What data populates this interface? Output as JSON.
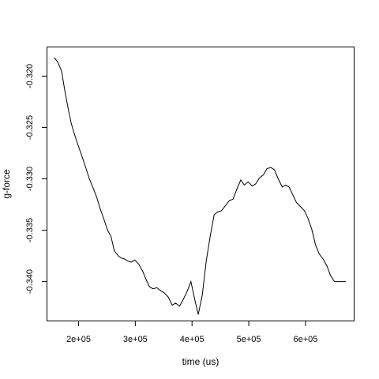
{
  "chart_data": {
    "type": "line",
    "title": "",
    "xlabel": "time (us)",
    "ylabel": "g-force",
    "xlim": [
      145000,
      685000
    ],
    "ylim": [
      -0.3438,
      -0.3172
    ],
    "x_ticks": [
      200000,
      300000,
      400000,
      500000,
      600000
    ],
    "x_tick_labels": [
      "2e+05",
      "3e+05",
      "4e+05",
      "5e+05",
      "6e+05"
    ],
    "y_ticks": [
      -0.32,
      -0.325,
      -0.33,
      -0.335,
      -0.34
    ],
    "y_tick_labels": [
      "-0.320",
      "-0.325",
      "-0.330",
      "-0.335",
      "-0.340"
    ],
    "series": [
      {
        "name": "g-force",
        "x": [
          157000,
          163000,
          170000,
          175000,
          181000,
          187000,
          193000,
          199000,
          206000,
          212000,
          219000,
          225000,
          232000,
          238000,
          245000,
          251000,
          257000,
          263000,
          270000,
          275000,
          281000,
          287000,
          293000,
          299000,
          306000,
          313000,
          319000,
          325000,
          331000,
          338000,
          345000,
          351000,
          358000,
          365000,
          371000,
          378000,
          384000,
          391000,
          398000,
          405000,
          411000,
          418000,
          425000,
          432000,
          439000,
          446000,
          452000,
          459000,
          466000,
          472000,
          479000,
          486000,
          492000,
          499000,
          506000,
          512000,
          519000,
          526000,
          532000,
          539000,
          545000,
          552000,
          559000,
          565000,
          571000,
          578000,
          584000,
          591000,
          598000,
          604000,
          611000,
          618000,
          624000,
          631000,
          638000,
          644000,
          651000,
          658000,
          664000,
          671000
        ],
        "y": [
          -0.3182,
          -0.3186,
          -0.3195,
          -0.3212,
          -0.323,
          -0.3246,
          -0.3257,
          -0.3267,
          -0.3278,
          -0.3288,
          -0.33,
          -0.3308,
          -0.3318,
          -0.3329,
          -0.334,
          -0.335,
          -0.3356,
          -0.337,
          -0.3375,
          -0.3377,
          -0.3378,
          -0.338,
          -0.3381,
          -0.3379,
          -0.3383,
          -0.339,
          -0.3398,
          -0.3405,
          -0.3407,
          -0.3406,
          -0.3409,
          -0.3411,
          -0.3415,
          -0.3423,
          -0.3421,
          -0.3424,
          -0.3418,
          -0.341,
          -0.34,
          -0.3418,
          -0.3432,
          -0.3413,
          -0.338,
          -0.3356,
          -0.3335,
          -0.3332,
          -0.3331,
          -0.3326,
          -0.3321,
          -0.332,
          -0.331,
          -0.3301,
          -0.3306,
          -0.3303,
          -0.3307,
          -0.3305,
          -0.3299,
          -0.3296,
          -0.329,
          -0.3289,
          -0.3291,
          -0.33,
          -0.3308,
          -0.3306,
          -0.3308,
          -0.3316,
          -0.3323,
          -0.3327,
          -0.3331,
          -0.3338,
          -0.3349,
          -0.3365,
          -0.3373,
          -0.3378,
          -0.3385,
          -0.3394,
          -0.34,
          -0.34,
          -0.34,
          -0.34
        ]
      }
    ]
  }
}
